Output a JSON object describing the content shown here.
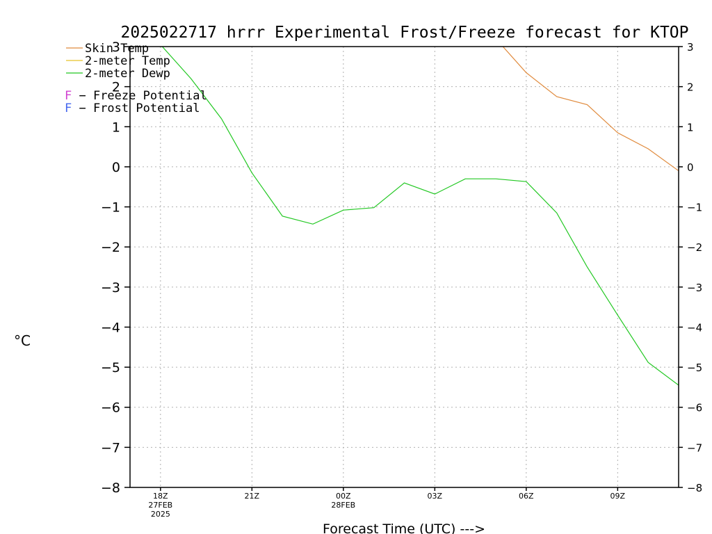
{
  "chart_data": {
    "type": "line",
    "title": "2025022717 hrrr Experimental Frost/Freeze forecast for KTOP",
    "xlabel": "Forecast Time (UTC) --->",
    "ylabel": "°C",
    "ylim": [
      -8,
      3
    ],
    "yticks": [
      3,
      2,
      1,
      0,
      -1,
      -2,
      -3,
      -4,
      -5,
      -6,
      -7,
      -8
    ],
    "ytick_labels": [
      "3",
      "2",
      "1",
      "0",
      "−1",
      "−2",
      "−3",
      "−4",
      "−5",
      "−6",
      "−7",
      "−8"
    ],
    "x_hours": [
      17,
      18,
      19,
      20,
      21,
      22,
      23,
      24,
      25,
      26,
      27,
      28,
      29,
      30,
      31,
      32,
      33,
      34,
      35
    ],
    "xlim": [
      17,
      35
    ],
    "xticks": [
      {
        "hour": 18,
        "lines": [
          "18Z",
          "27FEB",
          "2025"
        ]
      },
      {
        "hour": 21,
        "lines": [
          "21Z"
        ]
      },
      {
        "hour": 24,
        "lines": [
          "00Z",
          "28FEB"
        ]
      },
      {
        "hour": 27,
        "lines": [
          "03Z"
        ]
      },
      {
        "hour": 30,
        "lines": [
          "06Z"
        ]
      },
      {
        "hour": 33,
        "lines": [
          "09Z"
        ]
      }
    ],
    "grid": true,
    "legend_position": "top-left",
    "series": [
      {
        "name": "Skin Temp",
        "color": "#e08a3c",
        "values": [
          null,
          null,
          null,
          null,
          null,
          null,
          null,
          null,
          null,
          null,
          null,
          null,
          3.2,
          2.35,
          1.75,
          1.55,
          0.85,
          0.45,
          -0.1
        ]
      },
      {
        "name": "2-meter Temp",
        "color": "#e6c229",
        "values": [
          null,
          null,
          null,
          null,
          null,
          null,
          null,
          null,
          null,
          null,
          null,
          null,
          null,
          null,
          null,
          null,
          null,
          null,
          null
        ]
      },
      {
        "name": "2-meter Dewp",
        "color": "#22c822",
        "values": [
          3.4,
          3.05,
          2.2,
          1.2,
          -0.15,
          -1.23,
          -1.43,
          -1.08,
          -1.02,
          -0.4,
          -0.68,
          -0.3,
          -0.3,
          -0.37,
          -1.15,
          -2.5,
          -3.7,
          -4.88,
          -5.45
        ]
      }
    ],
    "potential_legend": [
      {
        "letter": "F",
        "text": " − Freeze Potential",
        "color": "#d040d0"
      },
      {
        "letter": "F",
        "text": " − Frost Potential",
        "color": "#4466ee"
      }
    ]
  }
}
